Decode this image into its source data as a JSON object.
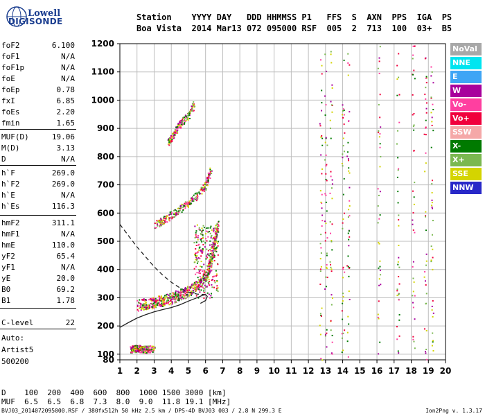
{
  "logo": {
    "line1": "Lowell",
    "line2": "DIGISONDE"
  },
  "header": {
    "row1": "Station    YYYY DAY   DDD HHMMSS P1   FFS  S  AXN  PPS  IGA  PS",
    "row2": "Boa Vista  2014 Mar13 072 095000 RSF  005  2  713  100  03+  B5"
  },
  "params": [
    {
      "name": "foF2",
      "value": "6.100"
    },
    {
      "name": "foF1",
      "value": "N/A"
    },
    {
      "name": "foF1p",
      "value": "N/A"
    },
    {
      "name": "foE",
      "value": "N/A"
    },
    {
      "name": "foEp",
      "value": "0.78"
    },
    {
      "name": "fxI",
      "value": "6.85"
    },
    {
      "name": "foEs",
      "value": "2.20"
    },
    {
      "name": "fmin",
      "value": "1.65"
    },
    {
      "name": "MUF(D)",
      "value": "19.06"
    },
    {
      "name": "M(D)",
      "value": "3.13"
    },
    {
      "name": "D",
      "value": "N/A"
    },
    {
      "name": "h`F",
      "value": "269.0"
    },
    {
      "name": "h`F2",
      "value": "269.0"
    },
    {
      "name": "h`E",
      "value": "N/A"
    },
    {
      "name": "h`Es",
      "value": "116.3"
    },
    {
      "name": "hmF2",
      "value": "311.1"
    },
    {
      "name": "hmF1",
      "value": "N/A"
    },
    {
      "name": "hmE",
      "value": "110.0"
    },
    {
      "name": "yF2",
      "value": "65.4"
    },
    {
      "name": "yF1",
      "value": "N/A"
    },
    {
      "name": "yE",
      "value": "20.0"
    },
    {
      "name": "B0",
      "value": "69.2"
    },
    {
      "name": "B1",
      "value": "1.78"
    },
    {
      "name": "C-level",
      "value": "22"
    }
  ],
  "auto": {
    "line1": "Auto:",
    "line2": "Artist5",
    "line3": "500200"
  },
  "legend": [
    {
      "label": "NoVal",
      "color": "#a8a8a8"
    },
    {
      "label": "NNE",
      "color": "#00e5f0"
    },
    {
      "label": "E",
      "color": "#3ea5f5"
    },
    {
      "label": "W",
      "color": "#a8009c"
    },
    {
      "label": "Vo-",
      "color": "#ff3fa0"
    },
    {
      "label": "Vo+",
      "color": "#f0003c"
    },
    {
      "label": "SSW",
      "color": "#f5a8a8"
    },
    {
      "label": "X-",
      "color": "#007a00"
    },
    {
      "label": "X+",
      "color": "#7ab850"
    },
    {
      "label": "SSE",
      "color": "#d4d400"
    },
    {
      "label": "NNW",
      "color": "#2828c8"
    }
  ],
  "muf_table": {
    "row1": "D    100  200  400  600  800  1000 1500 3000 [km]",
    "row2": "MUF  6.5  6.5  6.8  7.3  8.0  9.0  11.8 19.1 [MHz]"
  },
  "footer": {
    "left": "BVJ03_2014072095000.RSF / 380fx512h 50 kHz 2.5 km / DPS-4D BVJ03 003 / 2.8 N 299.3 E",
    "right": "Ion2Png v. 1.3.17"
  },
  "chart_data": {
    "type": "scatter",
    "xlim": [
      1,
      20
    ],
    "ylim": [
      80,
      1200
    ],
    "x_ticks": [
      1,
      2,
      3,
      4,
      5,
      6,
      7,
      8,
      9,
      10,
      11,
      12,
      13,
      14,
      15,
      16,
      17,
      18,
      19,
      20
    ],
    "y_ticks": [
      80,
      100,
      200,
      300,
      400,
      500,
      600,
      700,
      800,
      900,
      1000,
      1100,
      1200
    ],
    "grid": true,
    "profile_curve": [
      [
        1.0,
        195
      ],
      [
        1.5,
        212
      ],
      [
        2.0,
        228
      ],
      [
        2.5,
        240
      ],
      [
        3.0,
        250
      ],
      [
        3.5,
        258
      ],
      [
        4.0,
        265
      ],
      [
        4.5,
        275
      ],
      [
        5.0,
        288
      ],
      [
        5.5,
        300
      ],
      [
        5.8,
        308
      ],
      [
        6.0,
        311
      ],
      [
        6.1,
        305
      ],
      [
        6.0,
        290
      ],
      [
        5.7,
        280
      ]
    ],
    "dashed_curve": [
      [
        1.0,
        560
      ],
      [
        1.5,
        520
      ],
      [
        2.0,
        480
      ],
      [
        2.5,
        445
      ],
      [
        3.0,
        410
      ],
      [
        3.5,
        380
      ],
      [
        4.0,
        355
      ],
      [
        4.5,
        335
      ],
      [
        5.0,
        320
      ],
      [
        5.5,
        313
      ],
      [
        6.0,
        311
      ]
    ],
    "traces": [
      {
        "name": "F2 trace",
        "x": [
          2.0,
          2.5,
          3.0,
          3.5,
          4.0,
          4.5,
          5.0,
          5.5,
          6.0,
          6.3,
          6.5,
          6.7
        ],
        "y": [
          275,
          280,
          285,
          292,
          300,
          312,
          325,
          345,
          380,
          430,
          500,
          560
        ]
      },
      {
        "name": "2nd hop",
        "x": [
          3.0,
          3.5,
          4.0,
          4.5,
          5.0,
          5.5,
          6.0,
          6.3
        ],
        "y": [
          560,
          575,
          595,
          615,
          640,
          665,
          700,
          760
        ]
      },
      {
        "name": "3rd hop",
        "x": [
          3.8,
          4.0,
          4.3,
          4.6,
          5.0,
          5.3
        ],
        "y": [
          850,
          870,
          900,
          925,
          950,
          985
        ]
      },
      {
        "name": "Es",
        "x": [
          1.6,
          1.8,
          2.0,
          2.2,
          2.4,
          2.6,
          3.0
        ],
        "y": [
          118,
          120,
          122,
          120,
          118,
          119,
          120
        ]
      }
    ]
  }
}
